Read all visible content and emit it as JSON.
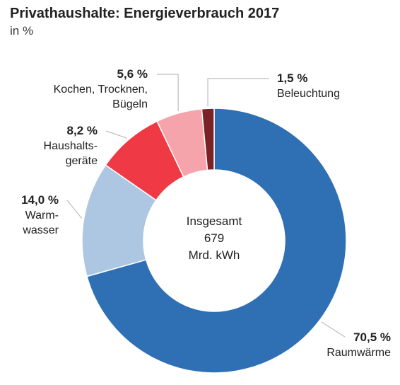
{
  "chart_data": {
    "type": "pie",
    "title": "Privathaushalte: Energieverbrauch 2017",
    "subtitle": "in %",
    "center_label": [
      "Insgesamt",
      "679",
      "Mrd. kWh"
    ],
    "slices": [
      {
        "label": [
          "Raumwärme"
        ],
        "value": 70.5,
        "value_label": "70,5 %",
        "color": "#2f6fb3"
      },
      {
        "label": [
          "Warm-",
          "wasser"
        ],
        "value": 14.0,
        "value_label": "14,0 %",
        "color": "#adc7e3"
      },
      {
        "label": [
          "Haushalts-",
          "geräte"
        ],
        "value": 8.2,
        "value_label": "8,2 %",
        "color": "#ef3a45"
      },
      {
        "label": [
          "Kochen, Trocknen,",
          "Bügeln"
        ],
        "value": 5.6,
        "value_label": "5,6 %",
        "color": "#f6a4ab"
      },
      {
        "label": [
          "Beleuchtung"
        ],
        "value": 1.5,
        "value_label": "1,5 %",
        "color": "#7a2228"
      }
    ]
  }
}
